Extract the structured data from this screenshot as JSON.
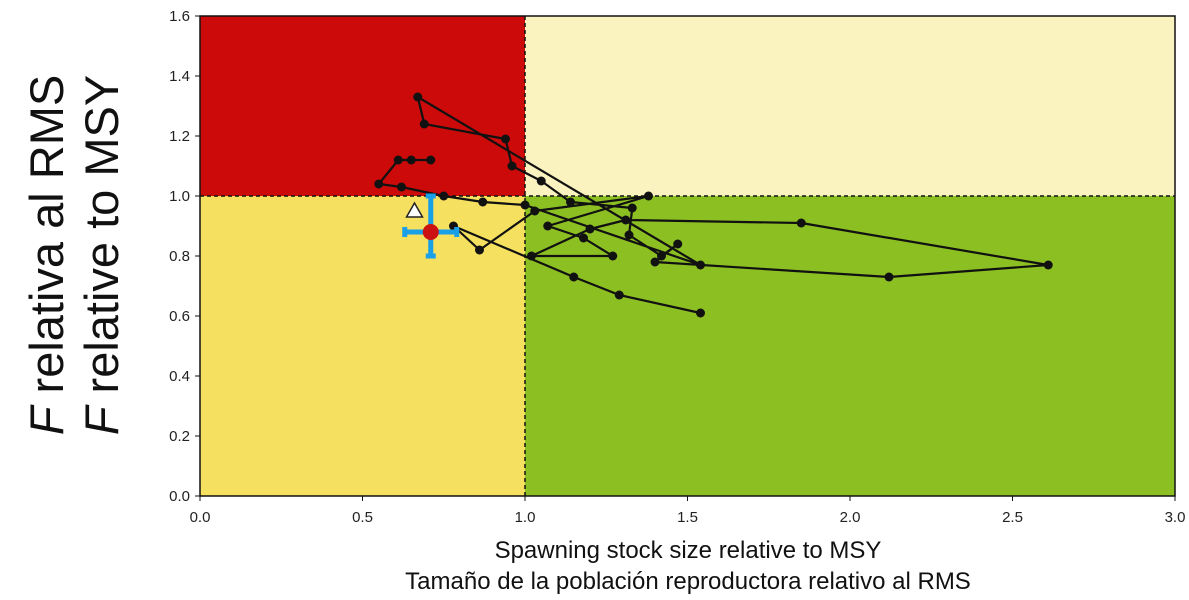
{
  "chart_data": {
    "type": "scatter",
    "xlabel": [
      "Spawning stock size relative to MSY",
      "Tamaño de la población reproductora relativo al RMS"
    ],
    "ylabel": [
      {
        "italic": "F",
        "rest": " relativa al RMS"
      },
      {
        "italic": "F",
        "rest": " relative to MSY"
      }
    ],
    "xlim": [
      0,
      3.0
    ],
    "ylim": [
      0,
      1.6
    ],
    "xticks": [
      "0.0",
      "0.5",
      "1.0",
      "1.5",
      "2.0",
      "2.5",
      "3.0"
    ],
    "yticks": [
      "0.0",
      "0.2",
      "0.4",
      "0.6",
      "0.8",
      "1.0",
      "1.2",
      "1.4",
      "1.6"
    ],
    "reference_lines": {
      "x": 1.0,
      "y": 1.0
    },
    "quadrants": [
      {
        "name": "overfishing-overfished",
        "color": "#cc0a0a"
      },
      {
        "name": "overfishing-healthy",
        "color": "#faf3c0"
      },
      {
        "name": "overfished",
        "color": "#f6e060"
      },
      {
        "name": "healthy",
        "color": "#8cbf22"
      }
    ],
    "trajectory": [
      [
        1.54,
        0.61
      ],
      [
        1.29,
        0.67
      ],
      [
        1.15,
        0.73
      ],
      [
        0.78,
        0.9
      ],
      [
        0.86,
        0.82
      ],
      [
        1.03,
        0.95
      ],
      [
        1.38,
        1.0
      ],
      [
        1.07,
        0.9
      ],
      [
        1.18,
        0.86
      ],
      [
        1.27,
        0.8
      ],
      [
        1.02,
        0.8
      ],
      [
        1.2,
        0.89
      ],
      [
        1.31,
        0.92
      ],
      [
        1.85,
        0.91
      ],
      [
        2.61,
        0.77
      ],
      [
        2.12,
        0.73
      ],
      [
        1.4,
        0.78
      ],
      [
        1.47,
        0.84
      ],
      [
        1.42,
        0.8
      ],
      [
        1.32,
        0.87
      ],
      [
        1.33,
        0.96
      ],
      [
        1.14,
        0.98
      ],
      [
        1.05,
        1.05
      ],
      [
        0.96,
        1.1
      ],
      [
        0.94,
        1.19
      ],
      [
        0.69,
        1.24
      ],
      [
        0.67,
        1.33
      ],
      [
        1.54,
        0.77
      ],
      [
        1.0,
        0.97
      ],
      [
        0.87,
        0.98
      ],
      [
        0.75,
        1.0
      ],
      [
        0.62,
        1.03
      ],
      [
        0.55,
        1.04
      ],
      [
        0.61,
        1.12
      ],
      [
        0.65,
        1.12
      ],
      [
        0.71,
        1.12
      ]
    ],
    "current_point": {
      "x": 0.71,
      "y": 0.88,
      "x_range": [
        0.63,
        0.79
      ],
      "y_range": [
        0.8,
        1.0
      ],
      "color": "#cc1111",
      "error_color": "#1aa0e8"
    },
    "reference_marker": {
      "x": 0.66,
      "y": 0.95,
      "shape": "triangle"
    }
  }
}
